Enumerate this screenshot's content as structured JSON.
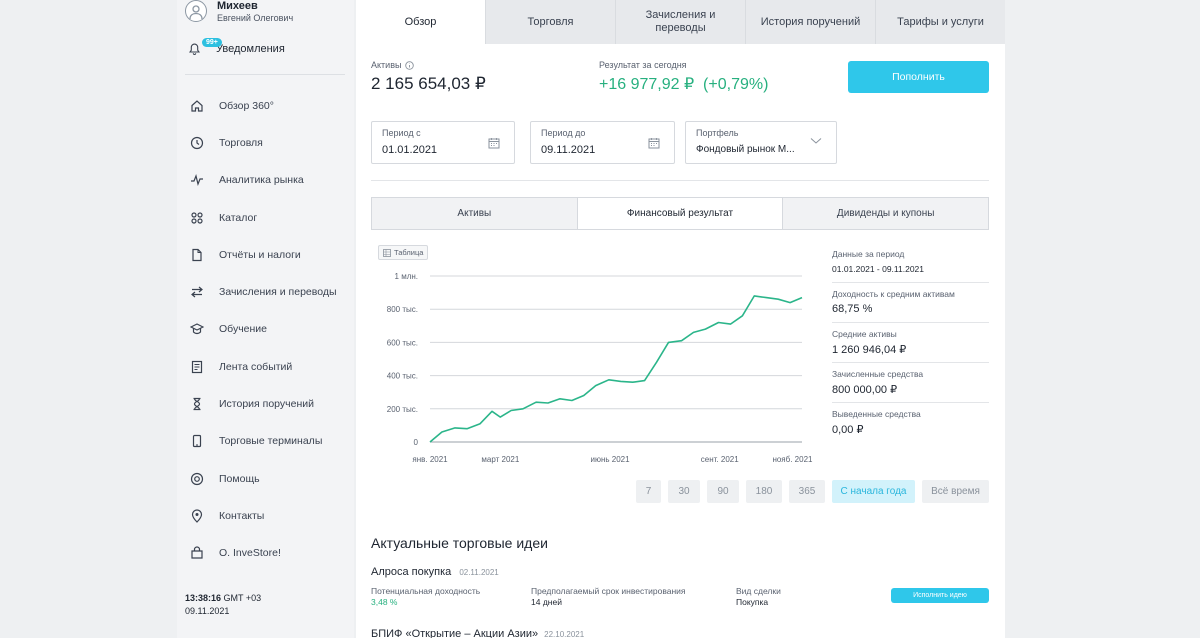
{
  "user": {
    "last_name": "Михеев",
    "full_name": "Евгений Олегович"
  },
  "notifications": {
    "badge": "99+",
    "label": "Уведомления"
  },
  "nav": [
    {
      "label": "Обзор 360°",
      "icon": "home-icon"
    },
    {
      "label": "Торговля",
      "icon": "trade-icon"
    },
    {
      "label": "Аналитика рынка",
      "icon": "pulse-icon"
    },
    {
      "label": "Каталог",
      "icon": "grid-icon"
    },
    {
      "label": "Отчёты и налоги",
      "icon": "document-icon"
    },
    {
      "label": "Зачисления и переводы",
      "icon": "transfer-icon"
    },
    {
      "label": "Обучение",
      "icon": "graduation-cap-icon"
    },
    {
      "label": "Лента событий",
      "icon": "feed-icon"
    },
    {
      "label": "История поручений",
      "icon": "hourglass-icon"
    },
    {
      "label": "Торговые терминалы",
      "icon": "phone-icon"
    },
    {
      "label": "Помощь",
      "icon": "lifebuoy-icon"
    },
    {
      "label": "Контакты",
      "icon": "location-pin-icon"
    },
    {
      "label": "О. InveStore!",
      "icon": "store-icon"
    }
  ],
  "clock": {
    "time": "13:38:16",
    "tz": "GMT +03",
    "date": "09.11.2021"
  },
  "tabs": [
    "Обзор",
    "Торговля",
    "Зачисления и\nпереводы",
    "История поручений",
    "Тарифы и услуги"
  ],
  "assets": {
    "label": "Активы",
    "value": "2 165 654,03 ₽"
  },
  "today": {
    "label": "Результат за сегодня",
    "value": "+16 977,92 ₽",
    "percent": "(+0,79%)"
  },
  "fund_button": "Пополнить",
  "filters": {
    "period_from": {
      "label": "Период с",
      "value": "01.01.2021"
    },
    "period_to": {
      "label": "Период до",
      "value": "09.11.2021"
    },
    "portfolio": {
      "label": "Портфель",
      "value": "Фондовый рынок М..."
    }
  },
  "subtabs": [
    "Активы",
    "Финансовый результат",
    "Дивиденды и купоны"
  ],
  "table_button": "Таблица",
  "chart_data": {
    "type": "line",
    "y_ticks": [
      "0",
      "200 тыс.",
      "400 тыс.",
      "600 тыс.",
      "800 тыс.",
      "1 млн."
    ],
    "x_ticks": [
      "янв. 2021",
      "март 2021",
      "июнь 2021",
      "сент. 2021",
      "нояб. 2021"
    ],
    "ylim": [
      0,
      1000000
    ],
    "grid": true,
    "color": "#2bb58a",
    "x": [
      "2021-01-01",
      "2021-01-11",
      "2021-01-22",
      "2021-02-01",
      "2021-02-12",
      "2021-02-22",
      "2021-03-01",
      "2021-03-10",
      "2021-03-20",
      "2021-03-31",
      "2021-04-10",
      "2021-04-20",
      "2021-04-30",
      "2021-05-10",
      "2021-05-20",
      "2021-05-31",
      "2021-06-10",
      "2021-06-20",
      "2021-06-30",
      "2021-07-10",
      "2021-07-20",
      "2021-07-31",
      "2021-08-10",
      "2021-08-20",
      "2021-08-31",
      "2021-09-10",
      "2021-09-20",
      "2021-09-30",
      "2021-10-10",
      "2021-10-20",
      "2021-10-30",
      "2021-11-09"
    ],
    "values": [
      0,
      60000,
      85000,
      80000,
      110000,
      185000,
      150000,
      190000,
      200000,
      240000,
      235000,
      260000,
      250000,
      280000,
      340000,
      375000,
      365000,
      360000,
      370000,
      480000,
      600000,
      610000,
      660000,
      680000,
      720000,
      710000,
      760000,
      880000,
      870000,
      860000,
      840000,
      870000
    ]
  },
  "stats": [
    {
      "label": "Данные за период",
      "value": "01.01.2021 - 09.11.2021"
    },
    {
      "label": "Доходность к средним активам",
      "value": "68,75 %"
    },
    {
      "label": "Средние активы",
      "value": "1 260 946,04 ₽"
    },
    {
      "label": "Зачисленные средства",
      "value": "800 000,00 ₽"
    },
    {
      "label": "Выведенные средства",
      "value": "0,00 ₽"
    }
  ],
  "ranges": [
    "7",
    "30",
    "90",
    "180",
    "365",
    "С начала года",
    "Всё время"
  ],
  "ideas": {
    "title": "Актуальные торговые идеи",
    "first": {
      "name": "Алроса покупка",
      "date": "02.11.2021",
      "yield_label": "Потенциальная доходность",
      "yield_value": "3,48 %",
      "term_label": "Предполагаемый срок инвестирования",
      "term_value": "14 дней",
      "type_label": "Вид сделки",
      "type_value": "Покупка",
      "button": "Исполнить идею"
    },
    "second": {
      "name": "БПИФ «Открытие – Акции Азии»",
      "date": "22.10.2021"
    }
  }
}
